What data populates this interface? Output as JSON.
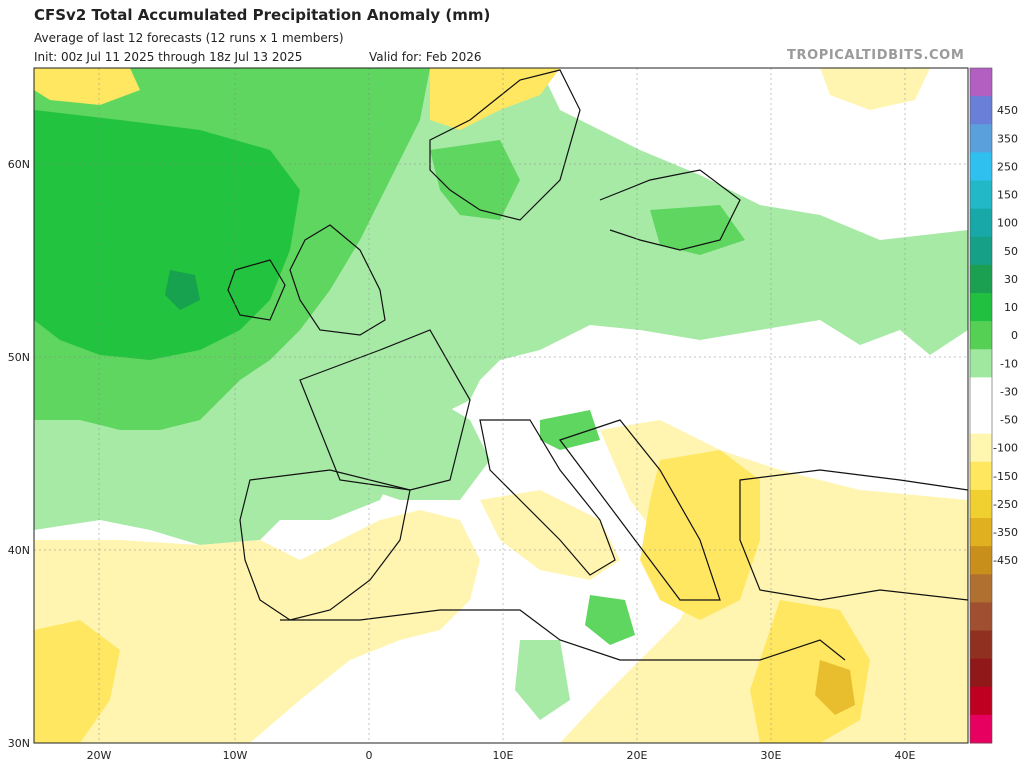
{
  "header": {
    "title": "CFSv2 Total Accumulated Precipitation Anomaly (mm)",
    "subtitle": "Average of last 12 forecasts (12 runs x 1 members)",
    "init": "Init: 00z Jul 11 2025 through 18z Jul 13 2025",
    "valid": "Valid for: Feb 2026",
    "brand": "TROPICALTIDBITS.COM"
  },
  "axes": {
    "lat_labels": [
      "60N",
      "50N",
      "40N",
      "30N"
    ],
    "lon_labels": [
      "20W",
      "10W",
      "0",
      "10E",
      "20E",
      "30E",
      "40E"
    ]
  },
  "colorbar": {
    "labels": [
      "450",
      "350",
      "250",
      "150",
      "100",
      "50",
      "30",
      "10",
      "0",
      "-10",
      "-30",
      "-50",
      "-100",
      "-150",
      "-250",
      "-350",
      "-450"
    ],
    "colors": [
      "#b35fc2",
      "#6a7fd8",
      "#5aa0dc",
      "#30c0f0",
      "#22b8c8",
      "#18a8a8",
      "#16a088",
      "#1aa050",
      "#22c040",
      "#55d055",
      "#a0e8a0",
      "#ffffff",
      "#ffffff",
      "#fff6b0",
      "#ffe860",
      "#f0d030",
      "#e0b020",
      "#c8901a",
      "#b07030",
      "#a05030",
      "#903020",
      "#901818",
      "#c00020",
      "#e80060"
    ]
  },
  "legend_colors": {
    "land": "#ffffff",
    "wet_light": "#a6eaa6",
    "wet_mid": "#5fd65f",
    "wet_strong": "#22c33e",
    "wet_max": "#16a24e",
    "dry_light": "#fff5b0",
    "dry_mid": "#ffe762",
    "dry_strong": "#e8be2e",
    "dry_max": "#c9882a"
  }
}
